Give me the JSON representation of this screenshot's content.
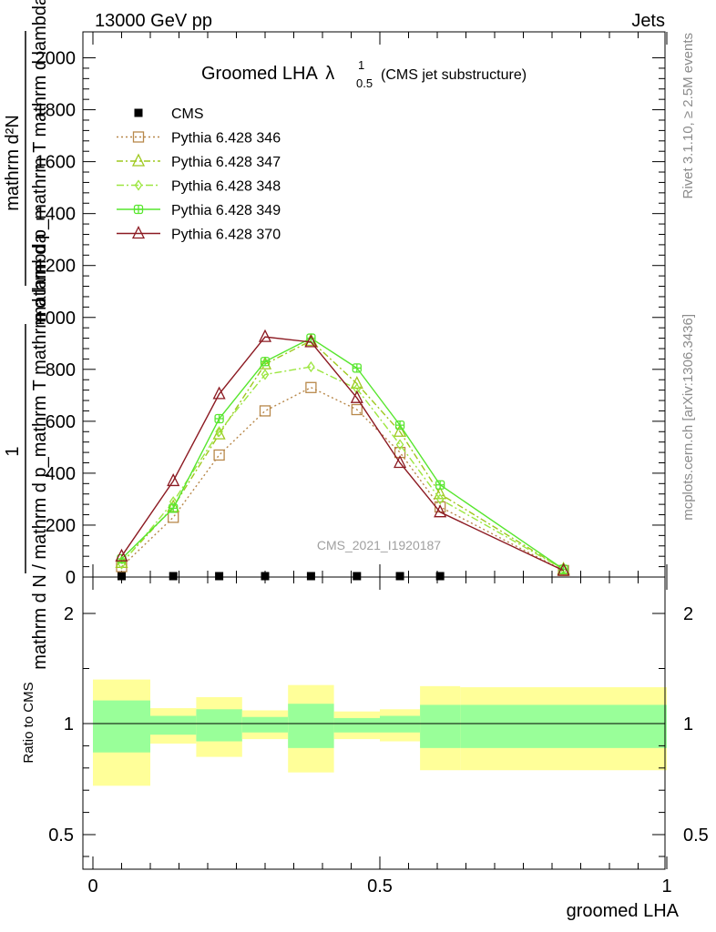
{
  "header": {
    "left": "13000 GeV pp",
    "right": "Jets"
  },
  "side_labels": {
    "rivet": "Rivet 3.1.10, ≥ 2.5M events",
    "mcplots": "mcplots.cern.ch [arXiv:1306.3436]"
  },
  "chart_data": [
    {
      "type": "line",
      "title": "Groomed LHA",
      "title_symbol": "λ",
      "title_sup": "1",
      "title_sub": "0.5",
      "subtitle": "(CMS jet substructure)",
      "watermark": "CMS_2021_I1920187",
      "ylabel_numerator": "1",
      "ylabel_denominator": "mathrm d N / mathrm d p_mathrm T mathrm d lambda",
      "ylabel_numerator2": "mathrm d²N",
      "ylabel_denominator2": "mathrm d p_mathrm T mathrm d lambda",
      "xlim": [
        0,
        1
      ],
      "ylim": [
        0,
        2100
      ],
      "x_ticks": [
        "0",
        "0.5",
        "1"
      ],
      "y_ticks": [
        "0",
        "200",
        "400",
        "600",
        "800",
        "1000",
        "1200",
        "1400",
        "1600",
        "1800",
        "2000"
      ],
      "x_points": [
        0.05,
        0.14,
        0.22,
        0.3,
        0.38,
        0.46,
        0.535,
        0.605,
        0.82
      ],
      "series": [
        {
          "name": "CMS",
          "color": "#000000",
          "marker": "filled-square",
          "values": [
            0,
            0,
            0,
            0,
            0,
            0,
            0,
            0,
            null
          ]
        },
        {
          "name": "Pythia 6.428 346",
          "color": "#b8884a",
          "marker": "open-square",
          "dash": "2,3",
          "values": [
            40,
            230,
            470,
            640,
            730,
            645,
            480,
            270,
            25
          ]
        },
        {
          "name": "Pythia 6.428 347",
          "color": "#9ec81e",
          "marker": "open-triangle",
          "dash": "7,3,2,3",
          "values": [
            55,
            270,
            550,
            820,
            910,
            745,
            560,
            320,
            30
          ]
        },
        {
          "name": "Pythia 6.428 348",
          "color": "#9ce640",
          "marker": "open-diamond",
          "dash": "8,3,2,3",
          "values": [
            50,
            290,
            560,
            780,
            810,
            725,
            510,
            300,
            30
          ]
        },
        {
          "name": "Pythia 6.428 349",
          "color": "#57e62e",
          "marker": "open-cross",
          "dash": "",
          "values": [
            70,
            265,
            610,
            830,
            920,
            805,
            585,
            355,
            30
          ]
        },
        {
          "name": "Pythia 6.428 370",
          "color": "#8c1a22",
          "marker": "open-triangle",
          "dash": "",
          "values": [
            80,
            370,
            705,
            925,
            905,
            690,
            440,
            250,
            25
          ]
        }
      ]
    },
    {
      "type": "area",
      "ylabel": "Ratio to CMS",
      "xlabel": "groomed LHA",
      "ylim": [
        0.35,
        2.3
      ],
      "y_ticks_left": [
        "0.5",
        "1",
        "2"
      ],
      "y_ticks_right": [
        "0.5",
        "1",
        "2"
      ],
      "x_ticks": [
        "0",
        "0.5",
        "1"
      ],
      "reference": 1,
      "bands": [
        {
          "x0": 0.0,
          "x1": 0.1,
          "yellow": [
            0.72,
            1.4
          ],
          "green": [
            0.87,
            1.21
          ]
        },
        {
          "x0": 0.1,
          "x1": 0.18,
          "yellow": [
            0.91,
            1.14
          ],
          "green": [
            0.95,
            1.07
          ]
        },
        {
          "x0": 0.18,
          "x1": 0.26,
          "yellow": [
            0.85,
            1.24
          ],
          "green": [
            0.92,
            1.13
          ]
        },
        {
          "x0": 0.26,
          "x1": 0.34,
          "yellow": [
            0.93,
            1.12
          ],
          "green": [
            0.96,
            1.06
          ]
        },
        {
          "x0": 0.34,
          "x1": 0.42,
          "yellow": [
            0.78,
            1.35
          ],
          "green": [
            0.89,
            1.18
          ]
        },
        {
          "x0": 0.42,
          "x1": 0.5,
          "yellow": [
            0.93,
            1.11
          ],
          "green": [
            0.96,
            1.05
          ]
        },
        {
          "x0": 0.5,
          "x1": 0.57,
          "yellow": [
            0.92,
            1.13
          ],
          "green": [
            0.96,
            1.07
          ]
        },
        {
          "x0": 0.57,
          "x1": 0.64,
          "yellow": [
            0.79,
            1.34
          ],
          "green": [
            0.89,
            1.17
          ]
        },
        {
          "x0": 0.64,
          "x1": 1.0,
          "yellow": [
            0.79,
            1.33
          ],
          "green": [
            0.89,
            1.17
          ]
        }
      ]
    }
  ],
  "colors": {
    "yellow_band": "#ffff99",
    "green_band": "#99ff99",
    "axis": "#000000",
    "side_text": "#8c8c8c",
    "watermark": "#a0a0a0"
  }
}
